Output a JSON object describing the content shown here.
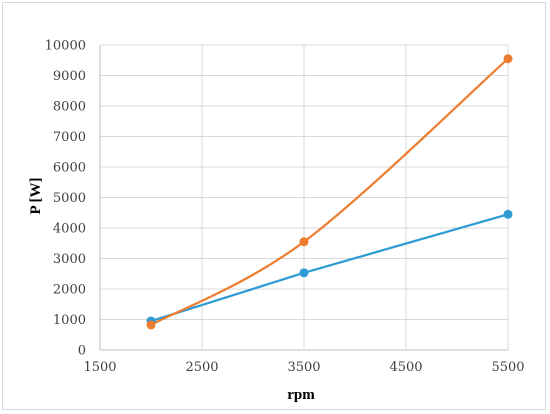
{
  "chart_data": {
    "type": "line",
    "title": "",
    "xlabel": "rpm",
    "ylabel": "P [W]",
    "xlim": [
      1500,
      5500
    ],
    "ylim": [
      0,
      10000
    ],
    "x_ticks": [
      1500,
      2500,
      3500,
      4500,
      5500
    ],
    "y_ticks": [
      0,
      1000,
      2000,
      3000,
      4000,
      5000,
      6000,
      7000,
      8000,
      9000,
      10000
    ],
    "x_tick_labels": [
      "1500",
      "2500",
      "3500",
      "4500",
      "5500"
    ],
    "y_tick_labels": [
      "0",
      "1000",
      "2000",
      "3000",
      "4000",
      "5000",
      "6000",
      "7000",
      "8000",
      "9000",
      "10000"
    ],
    "grid": true,
    "legend": "none",
    "series": [
      {
        "color": "#2e9bd6",
        "smooth": false,
        "x": [
          2000,
          3500,
          5500
        ],
        "y": [
          950,
          2530,
          4450
        ]
      },
      {
        "color": "#ed7d31",
        "smooth": true,
        "x": [
          2000,
          3500,
          5500
        ],
        "y": [
          820,
          3550,
          9550
        ]
      }
    ]
  }
}
